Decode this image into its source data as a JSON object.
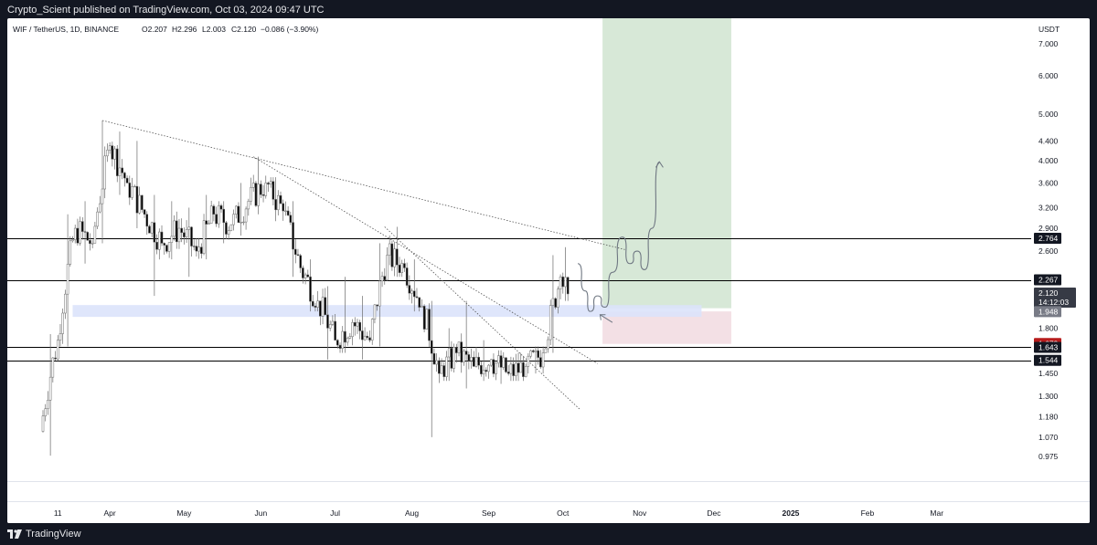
{
  "header": {
    "published": "Crypto_Scient published on TradingView.com, Oct 03, 2024 09:47 UTC"
  },
  "footer": {
    "brand": "TradingView",
    "brand_icon": "tradingview-logo-icon"
  },
  "colors": {
    "background_dark": "#131722",
    "candle_up": "#ffffff",
    "candle_down": "#000000",
    "candle_outline": "#6b6b6b",
    "level_line": "#000000",
    "target_zone": "#d7e8d7",
    "stop_zone": "#f3e0e5",
    "support_zone": "#dbe3fb",
    "current_price_label": "#787b86",
    "red_label": "#b71c1c"
  },
  "chart_data": {
    "type": "candlestick",
    "title": "WIF / TetherUS, 1D, BINANCE",
    "ohlc_header": {
      "open": "O2.207",
      "high": "H2.296",
      "low": "L2.003",
      "close": "C2.120",
      "change": "−0.086 (−3.90%)"
    },
    "currency": "USDT",
    "y_scale": "log",
    "ylim": [
      0.955,
      7.9
    ],
    "y_ticks": [
      "7.000",
      "6.000",
      "5.000",
      "4.400",
      "4.000",
      "3.600",
      "3.200",
      "2.900",
      "2.600",
      "1.800",
      "1.450",
      "1.300",
      "1.180",
      "1.070",
      "0.975"
    ],
    "x_range": [
      "2024-03-05",
      "2025-03-31"
    ],
    "x_ticks": [
      {
        "label": "11",
        "date": "2024-03-11"
      },
      {
        "label": "Apr",
        "date": "2024-04-01"
      },
      {
        "label": "May",
        "date": "2024-05-01"
      },
      {
        "label": "Jun",
        "date": "2024-06-01"
      },
      {
        "label": "Jul",
        "date": "2024-07-01"
      },
      {
        "label": "Aug",
        "date": "2024-08-01"
      },
      {
        "label": "Sep",
        "date": "2024-09-01"
      },
      {
        "label": "Oct",
        "date": "2024-10-01"
      },
      {
        "label": "Nov",
        "date": "2024-11-01"
      },
      {
        "label": "Dec",
        "date": "2024-12-01"
      },
      {
        "label": "2025",
        "date": "2025-01-01"
      },
      {
        "label": "Feb",
        "date": "2025-02-01"
      },
      {
        "label": "Mar",
        "date": "2025-03-01"
      }
    ],
    "horizontal_levels": [
      2.764,
      2.267,
      1.643,
      1.544
    ],
    "price_labels": [
      {
        "text": "2.764",
        "value": 2.764,
        "style": "black"
      },
      {
        "text": "2.267",
        "value": 2.267,
        "style": "black"
      },
      {
        "text": "2.120",
        "text2": "14:12:03",
        "value": 2.12,
        "style": "current"
      },
      {
        "text": "1.948",
        "value": 1.948,
        "style": "grey"
      },
      {
        "text": "1.673",
        "value": 1.673,
        "style": "red"
      },
      {
        "text": "1.643",
        "value": 1.643,
        "style": "black"
      },
      {
        "text": "1.544",
        "value": 1.544,
        "style": "black"
      }
    ],
    "zones": {
      "support": {
        "from": "2024-03-17",
        "to": "2024-11-26",
        "low": 1.9,
        "high": 2.01
      },
      "target": {
        "from": "2024-10-17",
        "to": "2024-12-08",
        "low": 1.98,
        "high": 7.9
      },
      "stop": {
        "from": "2024-10-17",
        "to": "2024-12-08",
        "low": 1.67,
        "high": 1.95
      }
    },
    "trendlines": [
      {
        "from": {
          "date": "2024-03-29",
          "price": 4.85
        },
        "to": {
          "date": "2024-10-26",
          "price": 2.62
        }
      },
      {
        "from": {
          "date": "2024-05-29",
          "price": 4.08
        },
        "to": {
          "date": "2024-10-15",
          "price": 1.52
        }
      },
      {
        "from": {
          "date": "2024-07-21",
          "price": 2.92
        },
        "to": {
          "date": "2024-10-08",
          "price": 1.22
        }
      }
    ],
    "projection_path": [
      {
        "date": "2024-10-07",
        "price": 2.45
      },
      {
        "date": "2024-10-10",
        "price": 2.15
      },
      {
        "date": "2024-10-12",
        "price": 1.95
      },
      {
        "date": "2024-10-15",
        "price": 2.1
      },
      {
        "date": "2024-10-18",
        "price": 1.99
      },
      {
        "date": "2024-10-21",
        "price": 2.35
      },
      {
        "date": "2024-10-25",
        "price": 2.78
      },
      {
        "date": "2024-10-28",
        "price": 2.45
      },
      {
        "date": "2024-10-31",
        "price": 2.6
      },
      {
        "date": "2024-11-03",
        "price": 2.38
      },
      {
        "date": "2024-11-06",
        "price": 2.9
      },
      {
        "date": "2024-11-09",
        "price": 3.98
      }
    ],
    "arrow_annotation": {
      "from": {
        "date": "2024-10-21",
        "price": 1.85
      },
      "to": {
        "date": "2024-10-16",
        "price": 1.92
      }
    },
    "candles_weekly_approx": [
      {
        "date": "2024-03-05",
        "open": 1.1,
        "high": 1.75,
        "low": 0.98,
        "close": 1.7
      },
      {
        "date": "2024-03-12",
        "open": 1.7,
        "high": 3.1,
        "low": 1.65,
        "close": 2.9
      },
      {
        "date": "2024-03-19",
        "open": 2.9,
        "high": 3.3,
        "low": 2.45,
        "close": 2.7
      },
      {
        "date": "2024-03-26",
        "open": 2.7,
        "high": 4.85,
        "low": 2.7,
        "close": 4.3
      },
      {
        "date": "2024-04-02",
        "open": 4.3,
        "high": 4.6,
        "low": 3.4,
        "close": 3.6
      },
      {
        "date": "2024-04-09",
        "open": 3.6,
        "high": 4.4,
        "low": 2.9,
        "close": 3.1
      },
      {
        "date": "2024-04-16",
        "open": 3.1,
        "high": 3.4,
        "low": 2.1,
        "close": 2.7
      },
      {
        "date": "2024-04-23",
        "open": 2.7,
        "high": 3.3,
        "low": 2.5,
        "close": 2.9
      },
      {
        "date": "2024-04-30",
        "open": 2.9,
        "high": 3.2,
        "low": 2.3,
        "close": 2.6
      },
      {
        "date": "2024-05-07",
        "open": 2.6,
        "high": 3.4,
        "low": 2.5,
        "close": 3.1
      },
      {
        "date": "2024-05-14",
        "open": 3.1,
        "high": 3.3,
        "low": 2.7,
        "close": 2.95
      },
      {
        "date": "2024-05-21",
        "open": 2.95,
        "high": 3.6,
        "low": 2.8,
        "close": 3.3
      },
      {
        "date": "2024-05-28",
        "open": 3.3,
        "high": 4.08,
        "low": 3.1,
        "close": 3.6
      },
      {
        "date": "2024-06-04",
        "open": 3.6,
        "high": 3.7,
        "low": 3.0,
        "close": 3.15
      },
      {
        "date": "2024-06-11",
        "open": 3.15,
        "high": 3.3,
        "low": 2.3,
        "close": 2.4
      },
      {
        "date": "2024-06-18",
        "open": 2.4,
        "high": 2.5,
        "low": 1.95,
        "close": 2.05
      },
      {
        "date": "2024-06-25",
        "open": 2.05,
        "high": 2.2,
        "low": 1.55,
        "close": 1.7
      },
      {
        "date": "2024-07-02",
        "open": 1.7,
        "high": 2.3,
        "low": 1.6,
        "close": 1.85
      },
      {
        "date": "2024-07-09",
        "open": 1.85,
        "high": 2.1,
        "low": 1.55,
        "close": 1.7
      },
      {
        "date": "2024-07-16",
        "open": 1.7,
        "high": 2.7,
        "low": 1.65,
        "close": 2.55
      },
      {
        "date": "2024-07-23",
        "open": 2.55,
        "high": 2.92,
        "low": 2.3,
        "close": 2.4
      },
      {
        "date": "2024-07-30",
        "open": 2.4,
        "high": 2.5,
        "low": 1.95,
        "close": 2.0
      },
      {
        "date": "2024-08-06",
        "open": 2.0,
        "high": 2.05,
        "low": 1.07,
        "close": 1.45
      },
      {
        "date": "2024-08-13",
        "open": 1.45,
        "high": 1.8,
        "low": 1.4,
        "close": 1.6
      },
      {
        "date": "2024-08-20",
        "open": 1.6,
        "high": 2.05,
        "low": 1.35,
        "close": 1.5
      },
      {
        "date": "2024-08-27",
        "open": 1.5,
        "high": 1.7,
        "low": 1.4,
        "close": 1.55
      },
      {
        "date": "2024-09-03",
        "open": 1.55,
        "high": 1.62,
        "low": 1.38,
        "close": 1.45
      },
      {
        "date": "2024-09-10",
        "open": 1.45,
        "high": 1.6,
        "low": 1.4,
        "close": 1.5
      },
      {
        "date": "2024-09-17",
        "open": 1.5,
        "high": 1.65,
        "low": 1.45,
        "close": 1.6
      },
      {
        "date": "2024-09-24",
        "open": 1.6,
        "high": 2.55,
        "low": 1.6,
        "close": 2.3
      },
      {
        "date": "2024-10-01",
        "open": 2.3,
        "high": 2.65,
        "low": 2.05,
        "close": 2.12
      }
    ]
  }
}
